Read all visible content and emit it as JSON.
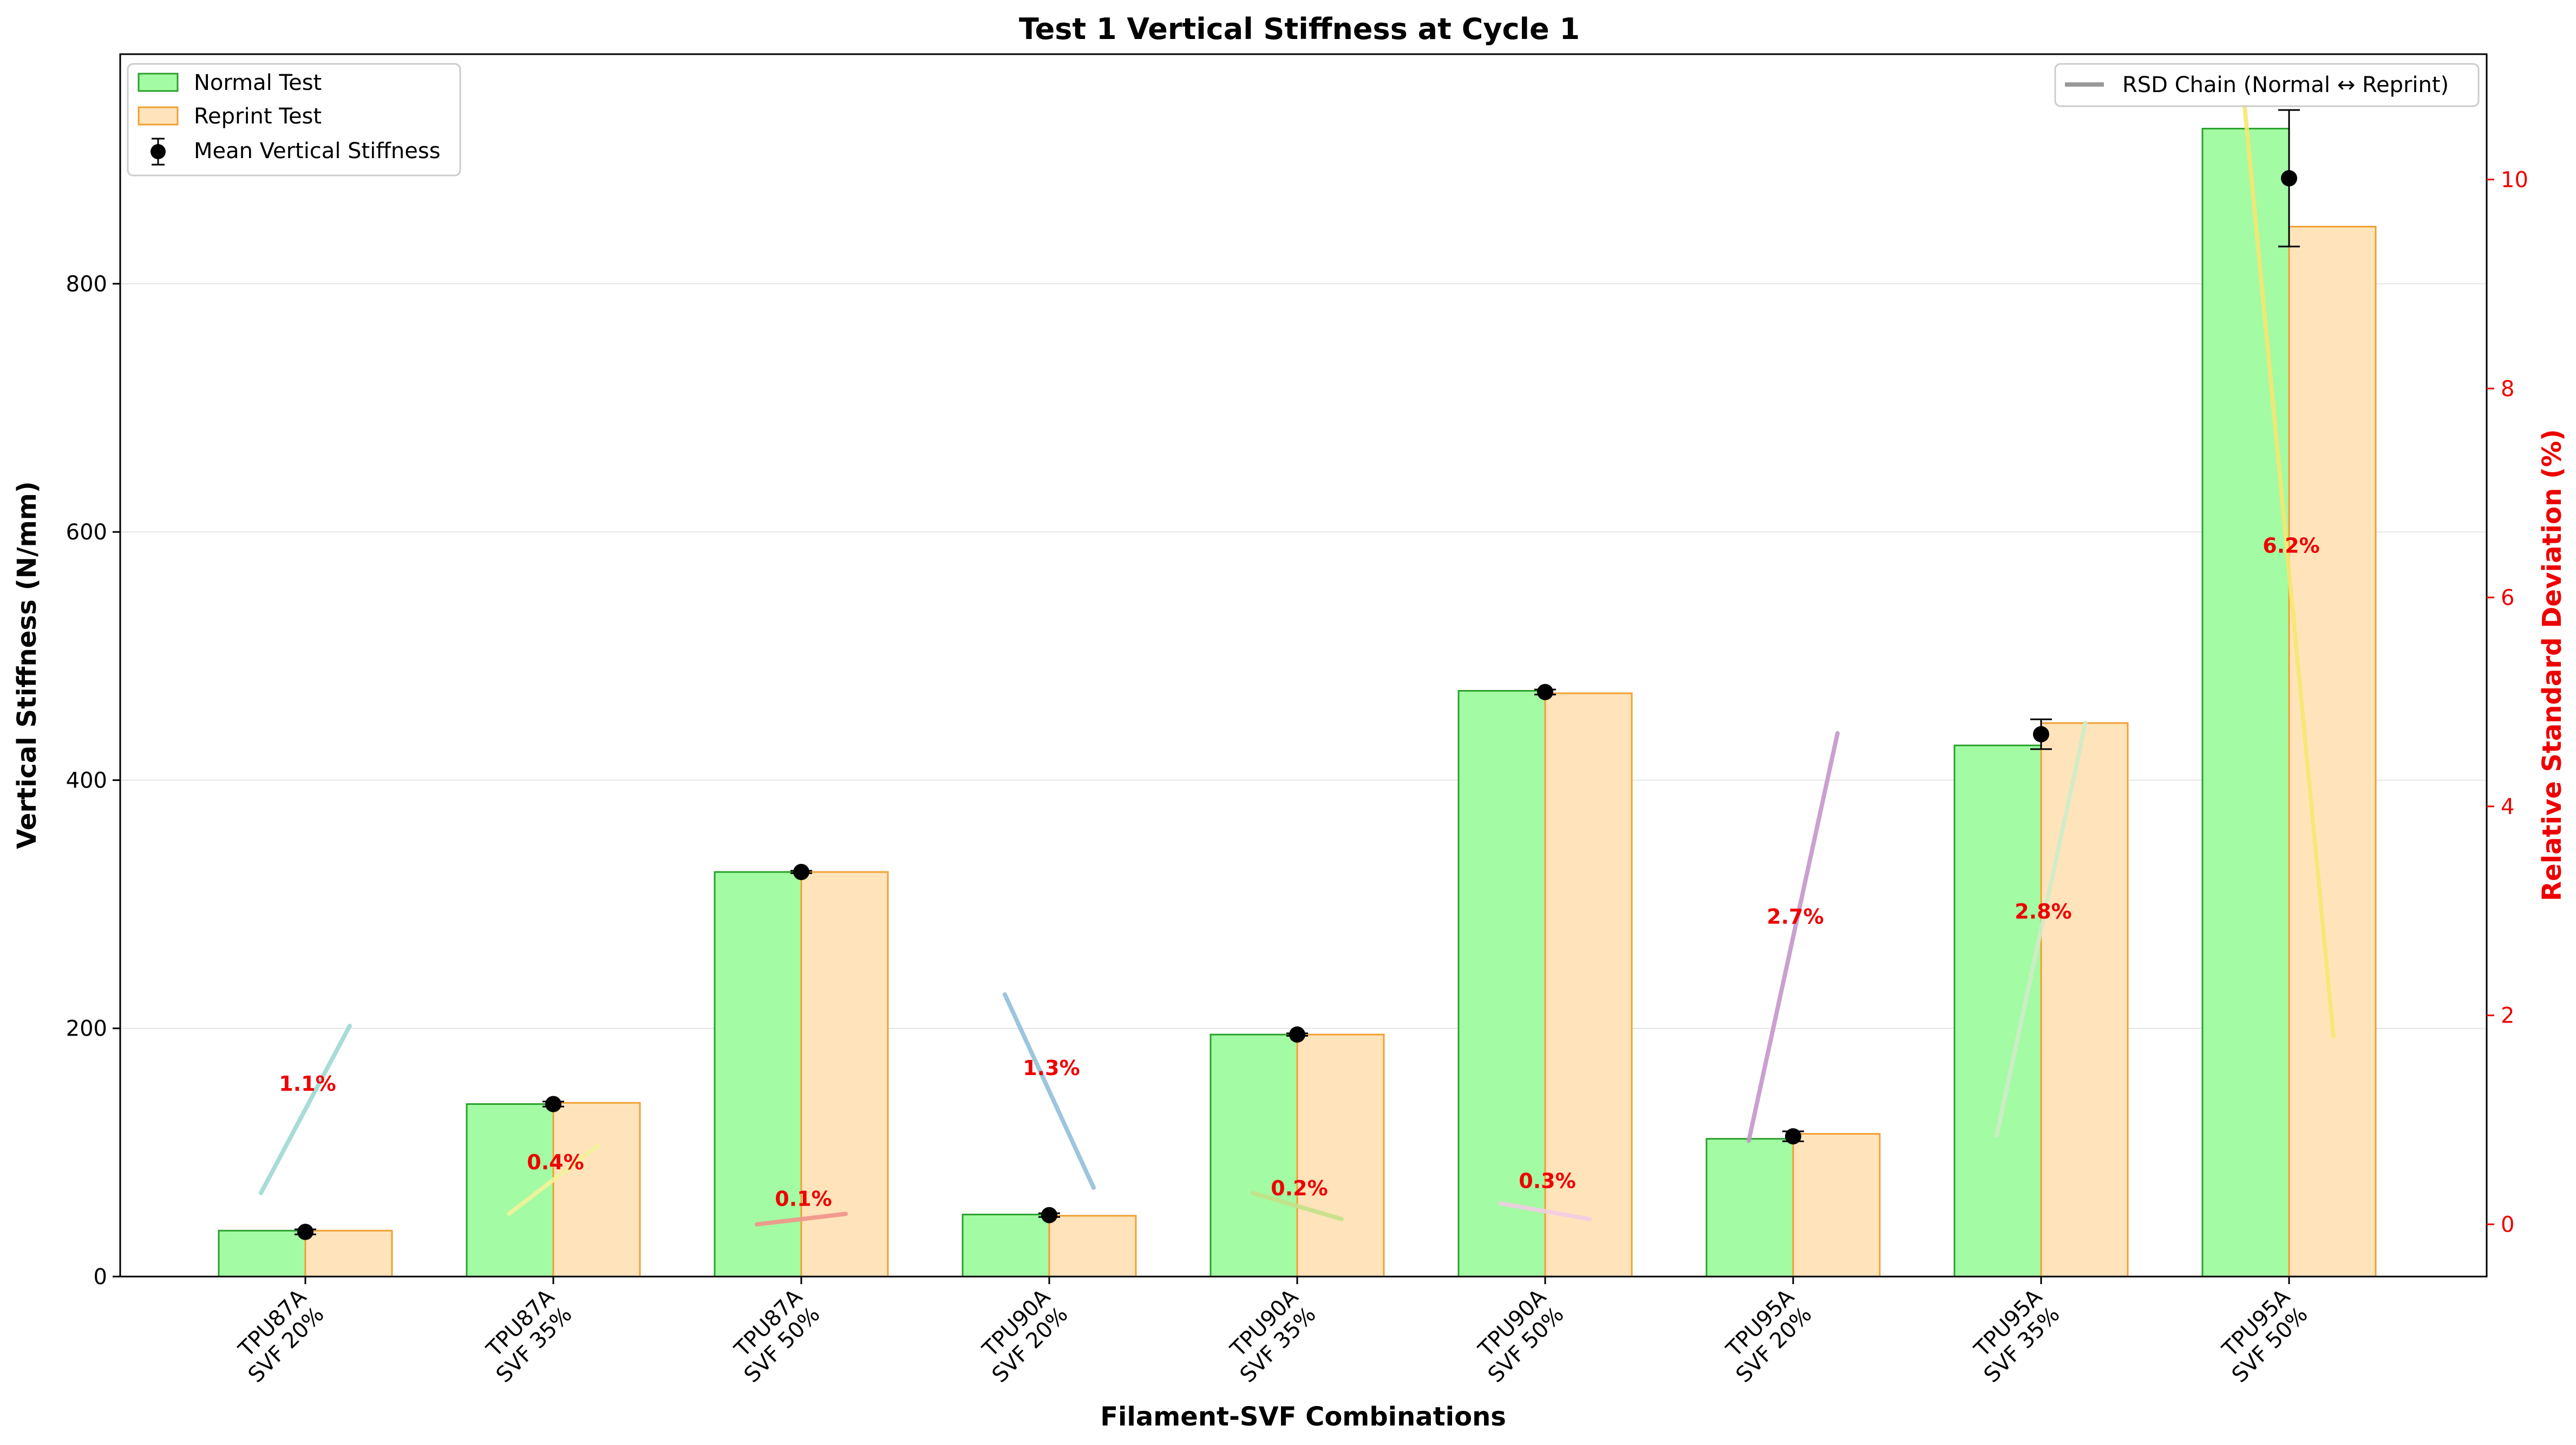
{
  "chart_data": {
    "type": "bar",
    "title": "Test 1 Vertical Stiffness at Cycle 1",
    "xlabel": "Filament-SVF Combinations",
    "ylabel": "Vertical Stiffness (N/mm)",
    "y2label": "Relative Standard Deviation (%)",
    "categories": [
      [
        "TPU87A",
        "SVF 20%"
      ],
      [
        "TPU87A",
        "SVF 35%"
      ],
      [
        "TPU87A",
        "SVF 50%"
      ],
      [
        "TPU90A",
        "SVF 20%"
      ],
      [
        "TPU90A",
        "SVF 35%"
      ],
      [
        "TPU90A",
        "SVF 50%"
      ],
      [
        "TPU95A",
        "SVF 20%"
      ],
      [
        "TPU95A",
        "SVF 35%"
      ],
      [
        "TPU95A",
        "SVF 50%"
      ]
    ],
    "ylim": [
      0,
      985
    ],
    "y2lim": [
      -0.5,
      11.2
    ],
    "yticks": [
      0,
      200,
      400,
      600,
      800
    ],
    "y2ticks": [
      0,
      2,
      4,
      6,
      8,
      10
    ],
    "grid": "horizontal",
    "series": [
      {
        "name": "Normal Test",
        "values": [
          37,
          139,
          326,
          50,
          195,
          472,
          111,
          428,
          925
        ],
        "color": "#a3fba3",
        "edge": "#2ca02c"
      },
      {
        "name": "Reprint Test",
        "values": [
          37,
          140,
          326,
          49,
          195,
          470,
          115,
          446,
          846
        ],
        "color": "#ffe4bb",
        "edge": "#f0a030"
      }
    ],
    "mean": {
      "name": "Mean Vertical Stiffness",
      "values": [
        36,
        139,
        326,
        49.5,
        195,
        471,
        113,
        437,
        885
      ],
      "err": [
        2,
        2,
        1,
        1.5,
        1,
        2,
        4,
        12,
        55
      ]
    },
    "rsd": {
      "name": "RSD Chain (Normal ↔ Reprint)",
      "labels": [
        "1.1%",
        "0.4%",
        "0.1%",
        "1.3%",
        "0.2%",
        "0.3%",
        "2.7%",
        "2.8%",
        "6.2%"
      ],
      "label_y": [
        1.35,
        0.6,
        0.25,
        1.5,
        0.35,
        0.42,
        2.95,
        3.0,
        6.5
      ],
      "start": [
        0.3,
        0.1,
        0.0,
        2.2,
        0.3,
        0.2,
        0.8,
        0.85,
        10.7
      ],
      "end": [
        1.9,
        0.75,
        0.1,
        0.35,
        0.05,
        0.05,
        4.7,
        4.8,
        1.8
      ],
      "colors": [
        "#9fd9d2",
        "#f3f39b",
        "#f2938a",
        "#93bfdb",
        "#c5e188",
        "#f3cde4",
        "#c596cb",
        "#d0ecc9",
        "#f7e873"
      ]
    },
    "legend_left": "top-left",
    "legend_right": "top-right"
  }
}
